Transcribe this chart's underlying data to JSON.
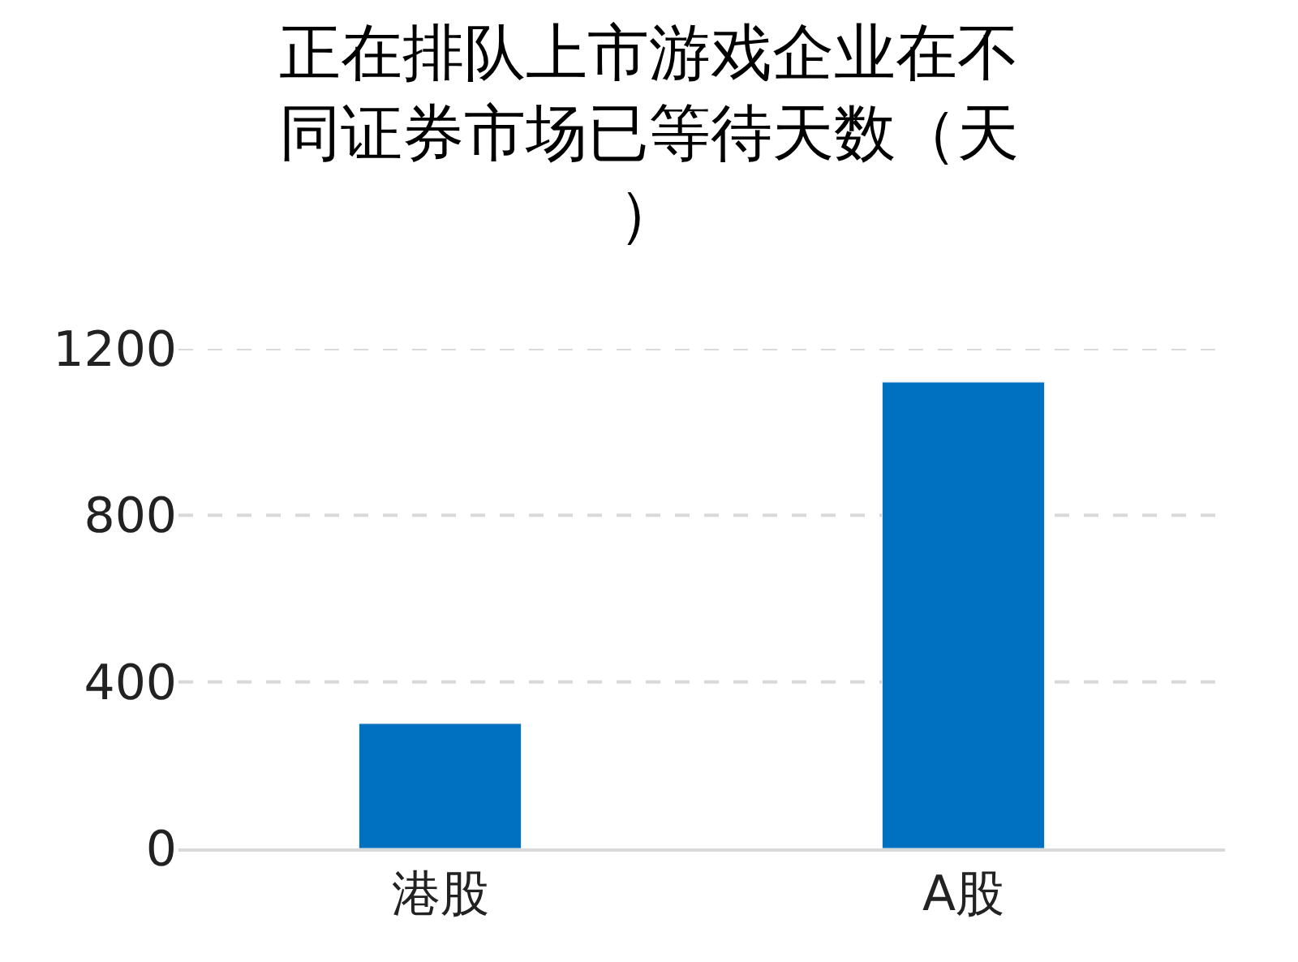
{
  "chart_data": {
    "type": "bar",
    "title": "正在排队上市游戏企业在不同证券市场已等待天数（天）",
    "categories": [
      "港股",
      "A股"
    ],
    "series": [
      {
        "color": "#0070c0",
        "values": [
          300,
          1120
        ]
      }
    ],
    "ylim": [
      0,
      1200
    ],
    "yticks": [
      0,
      400,
      800,
      1200
    ],
    "grid": "y"
  }
}
